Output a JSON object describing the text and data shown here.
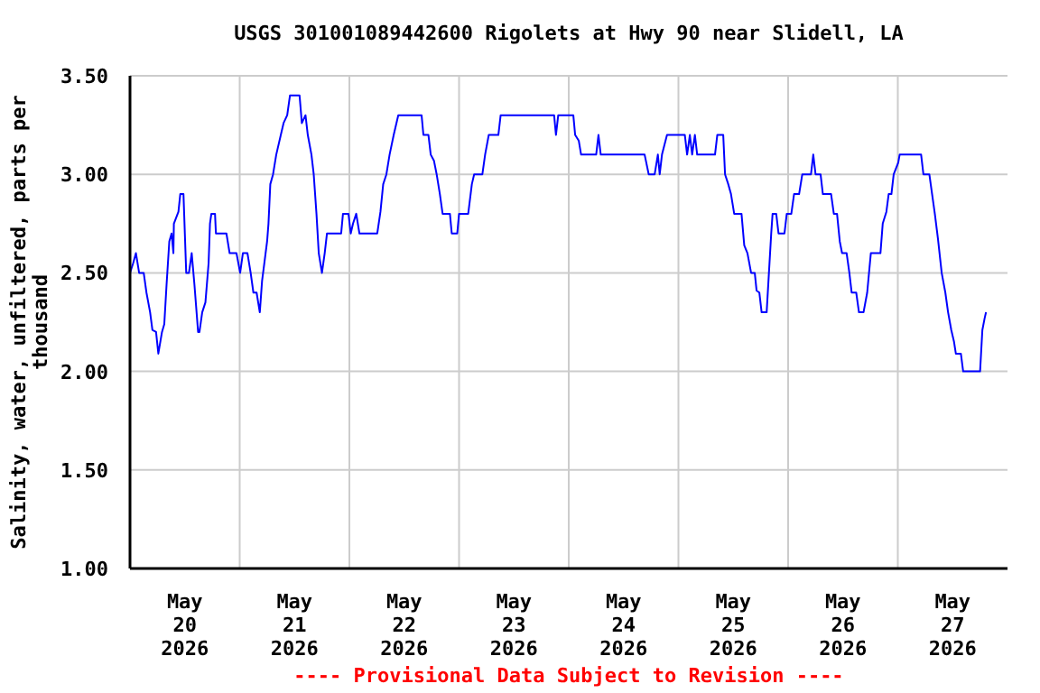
{
  "chart_data": {
    "type": "line",
    "title": "USGS 301001089442600 Rigolets at Hwy 90 near Slidell, LA",
    "ylabel": "Salinity, water, unfiltered, parts per thousand",
    "annotations": [
      "---- Provisional Data Subject to Revision ----"
    ],
    "series": [
      {
        "color": "#0000ff",
        "x": [
          "2026-05-20T00:00",
          "2026-05-20T00:42",
          "2026-05-20T01:18",
          "2026-05-20T02:00",
          "2026-05-20T03:00",
          "2026-05-20T03:36",
          "2026-05-20T04:24",
          "2026-05-20T04:54",
          "2026-05-20T05:42",
          "2026-05-20T06:12",
          "2026-05-20T07:00",
          "2026-05-20T07:30",
          "2026-05-20T08:00",
          "2026-05-20T08:36",
          "2026-05-20T09:06",
          "2026-05-20T09:30",
          "2026-05-20T09:36",
          "2026-05-20T10:36",
          "2026-05-20T11:00",
          "2026-05-20T11:42",
          "2026-05-20T12:00",
          "2026-05-20T12:18",
          "2026-05-20T12:54",
          "2026-05-20T13:30",
          "2026-05-20T14:06",
          "2026-05-20T14:54",
          "2026-05-20T15:12",
          "2026-05-20T15:48",
          "2026-05-20T16:30",
          "2026-05-20T17:12",
          "2026-05-20T17:30",
          "2026-05-20T17:48",
          "2026-05-20T18:36",
          "2026-05-20T18:48",
          "2026-05-20T21:06",
          "2026-05-20T21:48",
          "2026-05-20T23:18",
          "2026-05-21T00:06",
          "2026-05-21T00:42",
          "2026-05-21T01:42",
          "2026-05-21T02:24",
          "2026-05-21T03:00",
          "2026-05-21T03:42",
          "2026-05-21T04:24",
          "2026-05-21T04:54",
          "2026-05-21T05:24",
          "2026-05-21T06:00",
          "2026-05-21T06:18",
          "2026-05-21T06:42",
          "2026-05-21T07:18",
          "2026-05-21T08:00",
          "2026-05-21T09:00",
          "2026-05-21T09:36",
          "2026-05-21T10:24",
          "2026-05-21T11:00",
          "2026-05-21T13:06",
          "2026-05-21T13:36",
          "2026-05-21T14:24",
          "2026-05-21T14:54",
          "2026-05-21T15:42",
          "2026-05-21T16:12",
          "2026-05-21T16:48",
          "2026-05-21T17:18",
          "2026-05-21T18:00",
          "2026-05-21T18:36",
          "2026-05-21T19:06",
          "2026-05-21T22:12",
          "2026-05-21T22:36",
          "2026-05-21T23:48",
          "2026-05-22T00:18",
          "2026-05-22T00:48",
          "2026-05-22T01:30",
          "2026-05-22T02:12",
          "2026-05-22T06:06",
          "2026-05-22T06:48",
          "2026-05-22T07:24",
          "2026-05-22T08:06",
          "2026-05-22T08:48",
          "2026-05-22T09:42",
          "2026-05-22T10:42",
          "2026-05-22T15:48",
          "2026-05-22T16:12",
          "2026-05-22T17:18",
          "2026-05-22T17:48",
          "2026-05-22T18:30",
          "2026-05-22T19:06",
          "2026-05-22T19:48",
          "2026-05-22T20:24",
          "2026-05-22T22:00",
          "2026-05-22T22:24",
          "2026-05-22T23:36",
          "2026-05-23T00:00",
          "2026-05-23T02:00",
          "2026-05-23T02:48",
          "2026-05-23T03:18",
          "2026-05-23T05:06",
          "2026-05-23T05:42",
          "2026-05-23T06:30",
          "2026-05-23T08:36",
          "2026-05-23T09:06",
          "2026-05-23T20:48",
          "2026-05-23T21:12",
          "2026-05-23T21:42",
          "2026-05-24T01:00",
          "2026-05-24T01:24",
          "2026-05-24T02:12",
          "2026-05-24T02:42",
          "2026-05-24T06:00",
          "2026-05-24T06:30",
          "2026-05-24T07:00",
          "2026-05-24T16:36",
          "2026-05-24T17:30",
          "2026-05-24T18:48",
          "2026-05-24T19:30",
          "2026-05-24T19:54",
          "2026-05-24T20:24",
          "2026-05-24T21:30",
          "2026-05-25T01:24",
          "2026-05-25T01:54",
          "2026-05-25T02:30",
          "2026-05-25T03:00",
          "2026-05-25T03:36",
          "2026-05-25T04:06",
          "2026-05-25T08:00",
          "2026-05-25T08:30",
          "2026-05-25T09:48",
          "2026-05-25T10:12",
          "2026-05-25T10:54",
          "2026-05-25T11:30",
          "2026-05-25T12:12",
          "2026-05-25T13:48",
          "2026-05-25T14:24",
          "2026-05-25T15:06",
          "2026-05-25T15:54",
          "2026-05-25T16:42",
          "2026-05-25T17:06",
          "2026-05-25T17:42",
          "2026-05-25T18:12",
          "2026-05-25T19:18",
          "2026-05-25T19:48",
          "2026-05-25T20:18",
          "2026-05-25T20:36",
          "2026-05-25T21:24",
          "2026-05-25T21:54",
          "2026-05-25T23:12",
          "2026-05-25T23:42",
          "2026-05-26T00:42",
          "2026-05-26T01:18",
          "2026-05-26T02:24",
          "2026-05-26T03:06",
          "2026-05-26T05:00",
          "2026-05-26T05:30",
          "2026-05-26T06:00",
          "2026-05-26T07:06",
          "2026-05-26T07:36",
          "2026-05-26T09:24",
          "2026-05-26T10:00",
          "2026-05-26T10:42",
          "2026-05-26T11:18",
          "2026-05-26T11:48",
          "2026-05-26T12:48",
          "2026-05-26T13:24",
          "2026-05-26T13:54",
          "2026-05-26T14:54",
          "2026-05-26T15:30",
          "2026-05-26T16:30",
          "2026-05-26T17:18",
          "2026-05-26T18:06",
          "2026-05-26T20:12",
          "2026-05-26T20:42",
          "2026-05-26T21:30",
          "2026-05-26T22:00",
          "2026-05-26T22:36",
          "2026-05-26T23:06",
          "2026-05-27T00:06",
          "2026-05-27T00:24",
          "2026-05-27T05:06",
          "2026-05-27T05:36",
          "2026-05-27T06:54",
          "2026-05-27T07:30",
          "2026-05-27T08:06",
          "2026-05-27T08:48",
          "2026-05-27T09:36",
          "2026-05-27T10:24",
          "2026-05-27T11:00",
          "2026-05-27T11:42",
          "2026-05-27T12:18",
          "2026-05-27T12:42",
          "2026-05-27T13:48",
          "2026-05-27T14:18",
          "2026-05-27T18:00",
          "2026-05-27T18:30",
          "2026-05-27T19:00",
          "2026-05-27T19:18"
        ],
        "values": [
          2.5,
          2.55,
          2.6,
          2.5,
          2.5,
          2.4,
          2.3,
          2.21,
          2.2,
          2.09,
          2.2,
          2.24,
          2.44,
          2.66,
          2.7,
          2.6,
          2.75,
          2.81,
          2.9,
          2.9,
          2.7,
          2.5,
          2.5,
          2.6,
          2.44,
          2.2,
          2.2,
          2.3,
          2.35,
          2.55,
          2.75,
          2.8,
          2.8,
          2.7,
          2.7,
          2.6,
          2.6,
          2.5,
          2.6,
          2.6,
          2.5,
          2.4,
          2.4,
          2.3,
          2.46,
          2.55,
          2.66,
          2.75,
          2.95,
          3,
          3.1,
          3.2,
          3.26,
          3.3,
          3.4,
          3.4,
          3.26,
          3.3,
          3.2,
          3.1,
          3,
          2.8,
          2.6,
          2.5,
          2.6,
          2.7,
          2.7,
          2.8,
          2.8,
          2.7,
          2.75,
          2.8,
          2.7,
          2.7,
          2.81,
          2.95,
          3,
          3.1,
          3.2,
          3.3,
          3.3,
          3.2,
          3.2,
          3.1,
          3.07,
          3,
          2.9,
          2.8,
          2.8,
          2.7,
          2.7,
          2.8,
          2.8,
          2.95,
          3,
          3,
          3.1,
          3.2,
          3.2,
          3.3,
          3.3,
          3.2,
          3.3,
          3.3,
          3.2,
          3.17,
          3.1,
          3.1,
          3.2,
          3.1,
          3.1,
          3,
          3,
          3.1,
          3,
          3.1,
          3.2,
          3.2,
          3.1,
          3.2,
          3.1,
          3.2,
          3.1,
          3.1,
          3.2,
          3.2,
          3,
          2.95,
          2.9,
          2.8,
          2.8,
          2.64,
          2.6,
          2.5,
          2.5,
          2.41,
          2.4,
          2.3,
          2.3,
          2.5,
          2.7,
          2.8,
          2.8,
          2.7,
          2.7,
          2.8,
          2.8,
          2.9,
          2.9,
          3,
          3,
          3.1,
          3,
          3,
          2.9,
          2.9,
          2.8,
          2.8,
          2.66,
          2.6,
          2.6,
          2.5,
          2.4,
          2.4,
          2.3,
          2.3,
          2.4,
          2.6,
          2.6,
          2.75,
          2.81,
          2.9,
          2.9,
          3,
          3.06,
          3.1,
          3.1,
          3,
          3,
          2.9,
          2.8,
          2.67,
          2.5,
          2.4,
          2.3,
          2.21,
          2.15,
          2.09,
          2.09,
          2,
          2,
          2.21,
          2.27,
          2.3
        ]
      }
    ],
    "xlim": [
      "2026-05-20T00:00",
      "2026-05-28T00:00"
    ],
    "xticks": [
      {
        "value": "2026-05-20T12:00",
        "label": "May\n20\n2026"
      },
      {
        "value": "2026-05-21T00:00",
        "label": null
      },
      {
        "value": "2026-05-21T12:00",
        "label": "May\n21\n2026"
      },
      {
        "value": "2026-05-22T00:00",
        "label": null
      },
      {
        "value": "2026-05-22T12:00",
        "label": "May\n22\n2026"
      },
      {
        "value": "2026-05-23T00:00",
        "label": null
      },
      {
        "value": "2026-05-23T12:00",
        "label": "May\n23\n2026"
      },
      {
        "value": "2026-05-24T00:00",
        "label": null
      },
      {
        "value": "2026-05-24T12:00",
        "label": "May\n24\n2026"
      },
      {
        "value": "2026-05-25T00:00",
        "label": null
      },
      {
        "value": "2026-05-25T12:00",
        "label": "May\n25\n2026"
      },
      {
        "value": "2026-05-26T00:00",
        "label": null
      },
      {
        "value": "2026-05-26T12:00",
        "label": "May\n26\n2026"
      },
      {
        "value": "2026-05-27T00:00",
        "label": null
      },
      {
        "value": "2026-05-27T12:00",
        "label": "May\n27\n2026"
      }
    ],
    "ylim": [
      1,
      3.5
    ],
    "yticks": [
      {
        "value": 1,
        "label": "1.00"
      },
      {
        "value": 1.5,
        "label": "1.50"
      },
      {
        "value": 2,
        "label": "2.00"
      },
      {
        "value": 2.5,
        "label": "2.50"
      },
      {
        "value": 3,
        "label": "3.00"
      },
      {
        "value": 3.5,
        "label": "3.50"
      }
    ],
    "grid": true,
    "marker": "none",
    "line_style": "solid"
  }
}
